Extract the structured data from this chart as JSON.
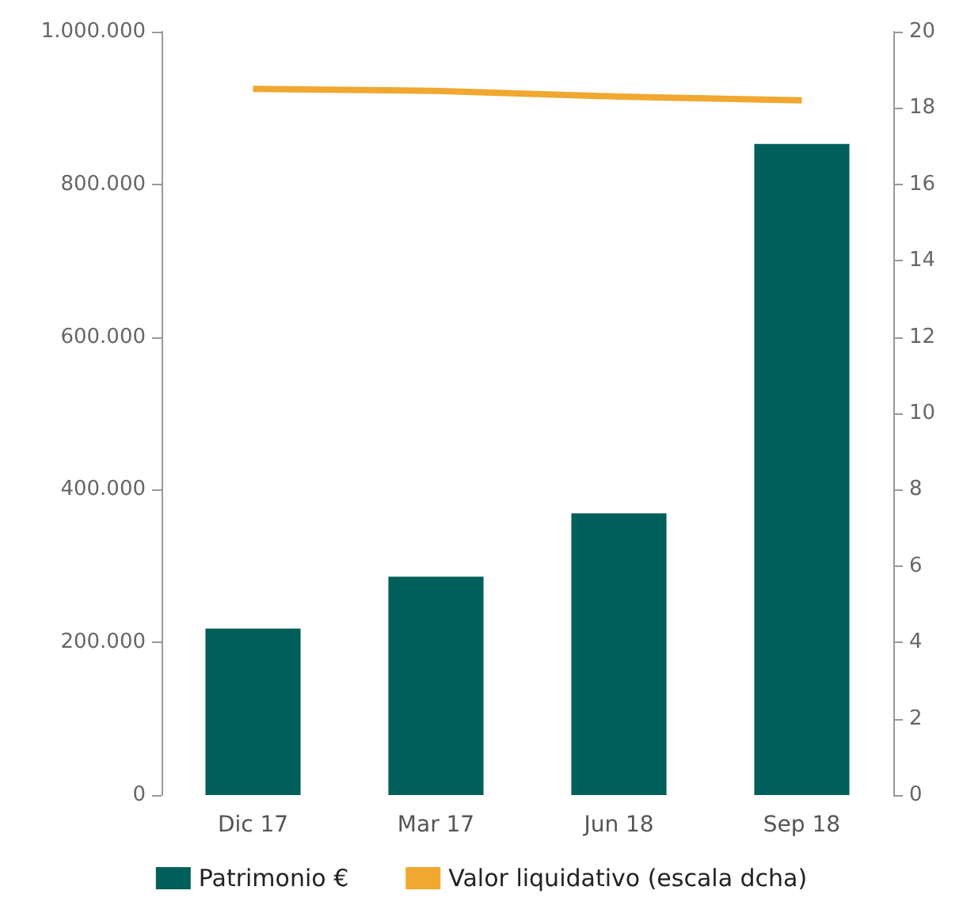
{
  "chart_data": {
    "type": "bar",
    "categories": [
      "Dic 17",
      "Mar 17",
      "Jun 18",
      "Sep 18"
    ],
    "series": [
      {
        "name": "Patrimonio €",
        "color": "#005f5a",
        "values": [
          218000,
          286000,
          369000,
          853000
        ]
      },
      {
        "name": "Valor liquidativo (escala dcha)",
        "type": "line",
        "axis": "y2",
        "color": "#f0a830",
        "values": [
          18.5,
          18.45,
          18.3,
          18.2
        ]
      }
    ],
    "ylim": [
      0,
      1000000
    ],
    "yticks": [
      {
        "value": 0,
        "label": "0"
      },
      {
        "value": 200000,
        "label": "200.000"
      },
      {
        "value": 400000,
        "label": "400.000"
      },
      {
        "value": 600000,
        "label": "600.000"
      },
      {
        "value": 800000,
        "label": "800.000"
      },
      {
        "value": 1000000,
        "label": "1.000.000"
      }
    ],
    "y2lim": [
      0,
      20
    ],
    "y2ticks": [
      0,
      2,
      4,
      6,
      8,
      10,
      12,
      14,
      16,
      18,
      20
    ],
    "grid": false,
    "legend": "bottom",
    "marker": "none"
  }
}
